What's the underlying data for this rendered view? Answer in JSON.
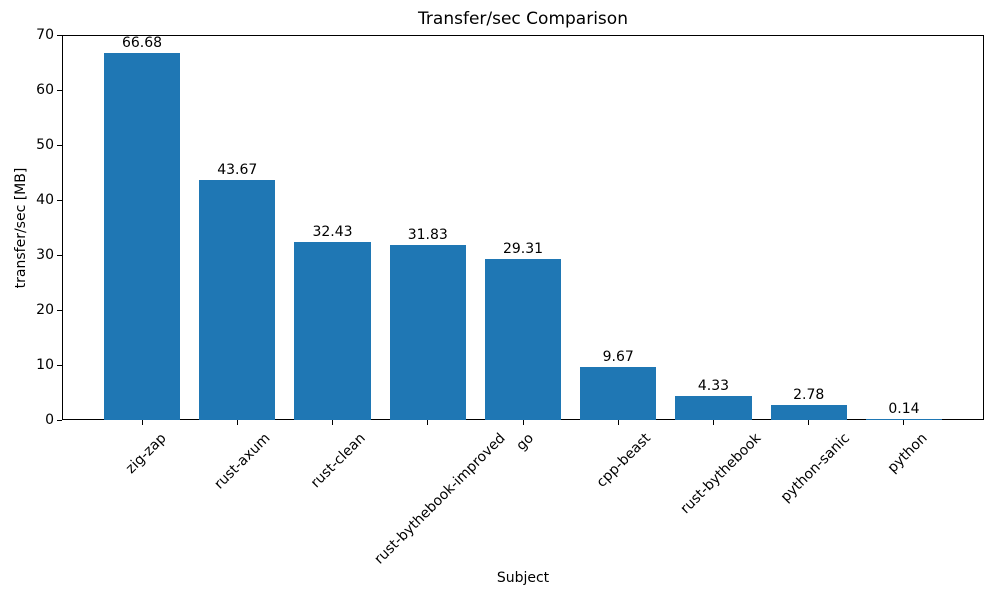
{
  "chart_data": {
    "type": "bar",
    "title": "Transfer/sec Comparison",
    "xlabel": "Subject",
    "ylabel": "transfer/sec [MB]",
    "categories": [
      "zig-zap",
      "rust-axum",
      "rust-clean",
      "rust-bythebook-improved",
      "go",
      "cpp-beast",
      "rust-bythebook",
      "python-sanic",
      "python"
    ],
    "values": [
      66.68,
      43.67,
      32.43,
      31.83,
      29.31,
      9.67,
      4.33,
      2.78,
      0.14
    ],
    "bar_value_labels": [
      "66.68",
      "43.67",
      "32.43",
      "31.83",
      "29.31",
      "9.67",
      "4.33",
      "2.78",
      "0.14"
    ],
    "yticks": [
      0,
      10,
      20,
      30,
      40,
      50,
      60,
      70
    ],
    "ytick_labels": [
      "0",
      "10",
      "20",
      "30",
      "40",
      "50",
      "60",
      "70"
    ],
    "ylim": [
      0,
      70
    ],
    "xtick_rotation_deg": 45,
    "grid": false,
    "legend": null,
    "colors": {
      "bar": "#1f77b4",
      "text": "#000000",
      "axis": "#000000",
      "background": "#ffffff"
    }
  }
}
